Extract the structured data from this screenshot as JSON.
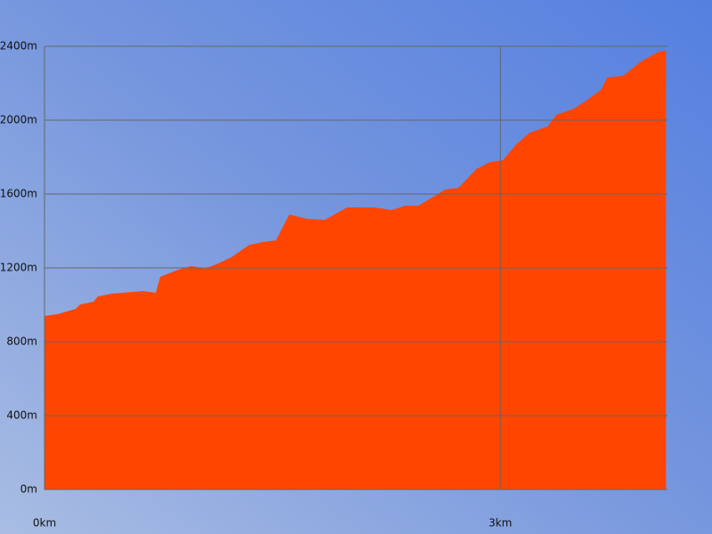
{
  "chart_data": {
    "type": "area",
    "x": [
      0,
      0.088,
      0.205,
      0.234,
      0.322,
      0.352,
      0.44,
      0.586,
      0.645,
      0.732,
      0.762,
      0.879,
      0.967,
      1.055,
      1.143,
      1.23,
      1.348,
      1.436,
      1.523,
      1.611,
      1.728,
      1.846,
      1.992,
      2.168,
      2.285,
      2.373,
      2.461,
      2.549,
      2.637,
      2.725,
      2.842,
      2.93,
      3.017,
      3.105,
      3.193,
      3.311,
      3.369,
      3.486,
      3.574,
      3.662,
      3.703,
      3.809,
      3.926,
      4.043,
      4.09
    ],
    "values": [
      940,
      950,
      978,
      1002,
      1017,
      1046,
      1060,
      1070,
      1075,
      1065,
      1152,
      1190,
      1210,
      1195,
      1224,
      1258,
      1325,
      1340,
      1349,
      1489,
      1465,
      1460,
      1528,
      1528,
      1513,
      1537,
      1537,
      1581,
      1624,
      1634,
      1735,
      1773,
      1783,
      1870,
      1932,
      1966,
      2029,
      2063,
      2111,
      2164,
      2231,
      2241,
      2318,
      2371,
      2376
    ],
    "color": "#ff4500",
    "xlim": [
      0,
      4.1
    ],
    "xticks": [
      {
        "value": 0,
        "label": "0km"
      },
      {
        "value": 3,
        "label": "3km"
      }
    ],
    "ylim": [
      0,
      2400
    ],
    "yticks": [
      {
        "value": 0,
        "label": "0m"
      },
      {
        "value": 400,
        "label": "400m"
      },
      {
        "value": 800,
        "label": "800m"
      },
      {
        "value": 1200,
        "label": "1200m"
      },
      {
        "value": 1600,
        "label": "1600m"
      },
      {
        "value": 2000,
        "label": "2000m"
      },
      {
        "value": 2400,
        "label": "2400m"
      }
    ],
    "grid": true
  }
}
